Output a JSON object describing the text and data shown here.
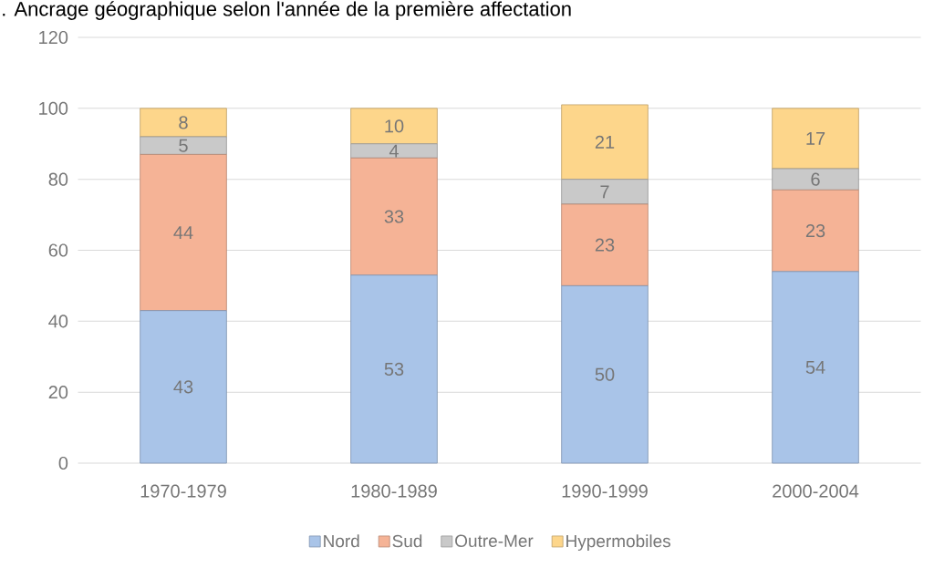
{
  "chart_data": {
    "type": "bar",
    "stacked": true,
    "title": ". Ancrage géographique selon l'année de la première affectation",
    "categories": [
      "1970-1979",
      "1980-1989",
      "1990-1999",
      "2000-2004"
    ],
    "series": [
      {
        "name": "Nord",
        "color": "#a9c4e8",
        "values": [
          43,
          53,
          50,
          54
        ]
      },
      {
        "name": "Sud",
        "color": "#f5b396",
        "values": [
          44,
          33,
          23,
          23
        ]
      },
      {
        "name": "Outre-Mer",
        "color": "#c9c9c9",
        "values": [
          5,
          4,
          7,
          6
        ]
      },
      {
        "name": "Hypermobiles",
        "color": "#fdd68b",
        "values": [
          8,
          10,
          21,
          17
        ]
      }
    ],
    "ylim": [
      0,
      120
    ],
    "yticks": [
      0,
      20,
      40,
      60,
      80,
      100,
      120
    ],
    "grid": "y",
    "legend": "bottom",
    "data_labels": true
  }
}
